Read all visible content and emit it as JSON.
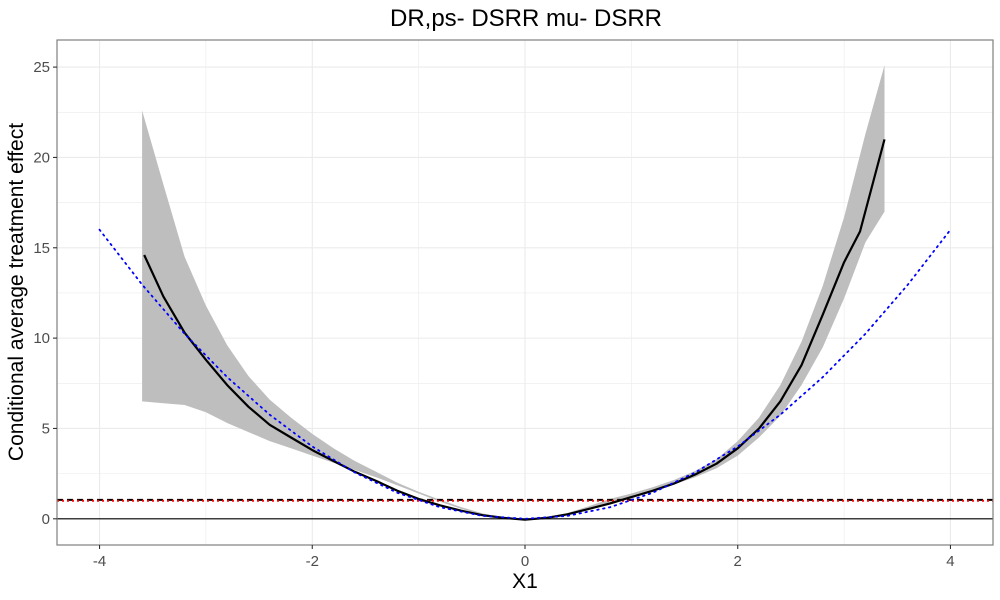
{
  "chart_data": {
    "type": "line",
    "title": "DR,ps- DSRR mu- DSRR",
    "xlabel": "X1",
    "ylabel": "Conditional average treatment effect",
    "xlim": [
      -4.4,
      4.4
    ],
    "ylim": [
      -1.45,
      26.5
    ],
    "x_ticks": [
      -4,
      -2,
      0,
      2,
      4
    ],
    "x_tick_labels": [
      "-4",
      "-2",
      "0",
      "2",
      "4"
    ],
    "y_ticks": [
      0,
      5,
      10,
      15,
      20,
      25
    ],
    "y_tick_labels": [
      "0",
      "5",
      "10",
      "15",
      "20",
      "25"
    ],
    "grid": true,
    "colors": {
      "estimate": "#000000",
      "band": "#bebebe",
      "truth": "#0000ff",
      "ate_estimate": "#000000",
      "ate_truth": "#ff0000",
      "zero_line": "#000000",
      "grid": "#ebebeb",
      "border": "#7f7f7f"
    },
    "confidence_band": {
      "x": [
        -3.6,
        -3.4,
        -3.2,
        -3.0,
        -2.8,
        -2.6,
        -2.4,
        -2.2,
        -2.0,
        -1.8,
        -1.6,
        -1.4,
        -1.2,
        -1.0,
        -0.8,
        -0.6,
        -0.4,
        -0.2,
        0.0,
        0.2,
        0.4,
        0.6,
        0.8,
        1.0,
        1.2,
        1.4,
        1.6,
        1.8,
        2.0,
        2.2,
        2.4,
        2.6,
        2.8,
        3.0,
        3.2,
        3.38
      ],
      "lower": [
        6.5,
        6.4,
        6.3,
        5.9,
        5.3,
        4.8,
        4.3,
        3.9,
        3.5,
        3.1,
        2.7,
        2.3,
        1.85,
        1.4,
        0.95,
        0.55,
        0.22,
        0.02,
        -0.05,
        0.03,
        0.23,
        0.55,
        0.9,
        1.25,
        1.55,
        1.9,
        2.3,
        2.8,
        3.5,
        4.5,
        5.7,
        7.4,
        9.5,
        12.2,
        15.3,
        17.0
      ],
      "upper": [
        22.6,
        18.5,
        14.5,
        11.8,
        9.6,
        7.9,
        6.6,
        5.6,
        4.7,
        3.9,
        3.2,
        2.6,
        2.0,
        1.5,
        1.05,
        0.65,
        0.3,
        0.07,
        0.0,
        0.1,
        0.32,
        0.7,
        1.1,
        1.4,
        1.75,
        2.15,
        2.65,
        3.3,
        4.3,
        5.6,
        7.4,
        9.8,
        12.9,
        16.7,
        21.3,
        25.1
      ]
    },
    "series": [
      {
        "style": "solid",
        "x": [
          -3.58,
          -3.4,
          -3.2,
          -3.0,
          -2.8,
          -2.6,
          -2.4,
          -2.2,
          -2.0,
          -1.8,
          -1.6,
          -1.4,
          -1.2,
          -1.0,
          -0.8,
          -0.6,
          -0.4,
          -0.2,
          0.0,
          0.2,
          0.4,
          0.6,
          0.8,
          1.0,
          1.2,
          1.4,
          1.6,
          1.8,
          2.0,
          2.2,
          2.4,
          2.6,
          2.8,
          3.0,
          3.15,
          3.38
        ],
        "y": [
          14.6,
          12.3,
          10.3,
          8.8,
          7.4,
          6.2,
          5.2,
          4.5,
          3.8,
          3.2,
          2.6,
          2.1,
          1.55,
          1.1,
          0.75,
          0.45,
          0.2,
          0.05,
          -0.05,
          0.05,
          0.25,
          0.55,
          0.85,
          1.2,
          1.55,
          1.95,
          2.45,
          3.05,
          3.9,
          5.0,
          6.5,
          8.5,
          11.3,
          14.2,
          15.9,
          21.0
        ]
      },
      {
        "style": "dotted",
        "x": [
          -4.0,
          -3.6,
          -3.2,
          -2.8,
          -2.4,
          -2.0,
          -1.6,
          -1.2,
          -0.8,
          -0.4,
          0.0,
          0.4,
          0.8,
          1.2,
          1.6,
          2.0,
          2.4,
          2.8,
          3.2,
          3.6,
          4.0
        ],
        "y": [
          16.0,
          12.96,
          10.24,
          7.84,
          5.76,
          4.0,
          2.56,
          1.44,
          0.64,
          0.16,
          0.0,
          0.16,
          0.64,
          1.44,
          2.56,
          4.0,
          5.76,
          7.84,
          10.24,
          12.96,
          16.0
        ]
      }
    ],
    "reference_lines": [
      {
        "y": 1.05,
        "style": "dashed"
      },
      {
        "y": 1.0,
        "style": "dotted"
      },
      {
        "y": 0,
        "style": "solid"
      }
    ]
  }
}
